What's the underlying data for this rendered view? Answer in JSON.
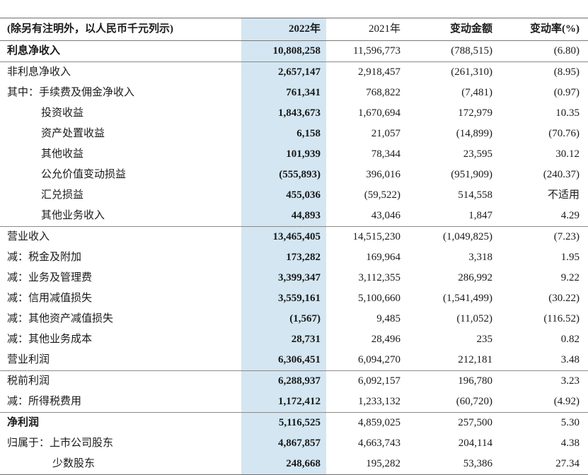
{
  "colors": {
    "band_background": "#d3e6f2",
    "rule_line": "#8a8a8a",
    "text": "#1a1a1a"
  },
  "table": {
    "header": {
      "note": "(除另有注明外，以人民币千元列示)",
      "col_2022": "2022年",
      "col_2021": "2021年",
      "col_change": "变动金额",
      "col_rate": "变动率(%)"
    },
    "rows": [
      {
        "label": "利息净收入",
        "indent": 0,
        "bold": true,
        "sep": true,
        "v2022": "10,808,258",
        "v2021": "11,596,773",
        "change": "(788,515)",
        "rate": "(6.80)"
      },
      {
        "label": "非利息净收入",
        "indent": 0,
        "v2022": "2,657,147",
        "v2021": "2,918,457",
        "change": "(261,310)",
        "rate": "(8.95)"
      },
      {
        "label": "其中：手续费及佣金净收入",
        "indent": 0,
        "v2022": "761,341",
        "v2021": "768,822",
        "change": "(7,481)",
        "rate": "(0.97)"
      },
      {
        "label": "投资收益",
        "indent": 48,
        "v2022": "1,843,673",
        "v2021": "1,670,694",
        "change": "172,979",
        "rate": "10.35"
      },
      {
        "label": "资产处置收益",
        "indent": 48,
        "v2022": "6,158",
        "v2021": "21,057",
        "change": "(14,899)",
        "rate": "(70.76)"
      },
      {
        "label": "其他收益",
        "indent": 48,
        "v2022": "101,939",
        "v2021": "78,344",
        "change": "23,595",
        "rate": "30.12"
      },
      {
        "label": "公允价值变动损益",
        "indent": 48,
        "v2022": "(555,893)",
        "v2021": "396,016",
        "change": "(951,909)",
        "rate": "(240.37)"
      },
      {
        "label": "汇兑损益",
        "indent": 48,
        "v2022": "455,036",
        "v2021": "(59,522)",
        "change": "514,558",
        "rate": "不适用"
      },
      {
        "label": "其他业务收入",
        "indent": 48,
        "sep": true,
        "v2022": "44,893",
        "v2021": "43,046",
        "change": "1,847",
        "rate": "4.29"
      },
      {
        "label": "营业收入",
        "indent": 0,
        "v2022": "13,465,405",
        "v2021": "14,515,230",
        "change": "(1,049,825)",
        "rate": "(7.23)"
      },
      {
        "label": "减：税金及附加",
        "indent": 0,
        "v2022": "173,282",
        "v2021": "169,964",
        "change": "3,318",
        "rate": "1.95"
      },
      {
        "label": "减：业务及管理费",
        "indent": 0,
        "v2022": "3,399,347",
        "v2021": "3,112,355",
        "change": "286,992",
        "rate": "9.22"
      },
      {
        "label": "减：信用减值损失",
        "indent": 0,
        "v2022": "3,559,161",
        "v2021": "5,100,660",
        "change": "(1,541,499)",
        "rate": "(30.22)"
      },
      {
        "label": "减：其他资产减值损失",
        "indent": 0,
        "v2022": "(1,567)",
        "v2021": "9,485",
        "change": "(11,052)",
        "rate": "(116.52)"
      },
      {
        "label": "减：其他业务成本",
        "indent": 0,
        "v2022": "28,731",
        "v2021": "28,496",
        "change": "235",
        "rate": "0.82"
      },
      {
        "label": "营业利润",
        "indent": 0,
        "sep": true,
        "v2022": "6,306,451",
        "v2021": "6,094,270",
        "change": "212,181",
        "rate": "3.48"
      },
      {
        "label": "税前利润",
        "indent": 0,
        "v2022": "6,288,937",
        "v2021": "6,092,157",
        "change": "196,780",
        "rate": "3.23"
      },
      {
        "label": "减：所得税费用",
        "indent": 0,
        "sep": true,
        "v2022": "1,172,412",
        "v2021": "1,233,132",
        "change": "(60,720)",
        "rate": "(4.92)"
      },
      {
        "label": "净利润",
        "indent": 0,
        "bold": true,
        "v2022": "5,116,525",
        "v2021": "4,859,025",
        "change": "257,500",
        "rate": "5.30"
      },
      {
        "label": "归属于：上市公司股东",
        "indent": 0,
        "v2022": "4,867,857",
        "v2021": "4,663,743",
        "change": "204,114",
        "rate": "4.38"
      },
      {
        "label": "少数股东",
        "indent": 64,
        "v2022": "248,668",
        "v2021": "195,282",
        "change": "53,386",
        "rate": "27.34"
      }
    ]
  }
}
